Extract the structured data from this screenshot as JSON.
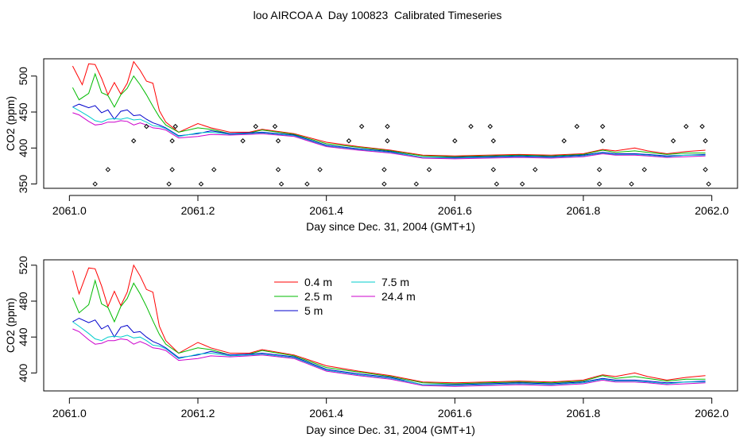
{
  "page": {
    "title": "loo AIRCOA A  Day 100823  Calibrated Timeseries"
  },
  "chart_data": [
    {
      "type": "line",
      "title": "",
      "xlabel": "Day since Dec. 31, 2004 (GMT+1)",
      "ylabel": "CO2 (ppm)",
      "xlim": [
        2060.96,
        2062.04
      ],
      "ylim": [
        344,
        524
      ],
      "xticks": [
        2061.0,
        2061.2,
        2061.4,
        2061.6,
        2061.8,
        2062.0
      ],
      "xtick_labels": [
        "2061.0",
        "2061.2",
        "2061.4",
        "2061.6",
        "2061.8",
        "2062.0"
      ],
      "yticks": [
        350,
        400,
        450,
        500
      ],
      "ytick_labels": [
        "350",
        "400",
        "450",
        "500"
      ],
      "legend": null,
      "grid": false,
      "series": [
        {
          "color": "#ff0000",
          "x": [
            2061.005,
            2061.02,
            2061.03,
            2061.04,
            2061.05,
            2061.06,
            2061.07,
            2061.08,
            2061.09,
            2061.1,
            2061.11,
            2061.12,
            2061.13,
            2061.14,
            2061.15,
            2061.17,
            2061.2,
            2061.22,
            2061.25,
            2061.28,
            2061.3,
            2061.35,
            2061.4,
            2061.45,
            2061.5,
            2061.55,
            2061.6,
            2061.65,
            2061.7,
            2061.75,
            2061.8,
            2061.83,
            2061.85,
            2061.88,
            2061.9,
            2061.93,
            2061.96,
            2061.99
          ],
          "y": [
            514,
            488,
            517,
            516,
            497,
            474,
            491,
            475,
            490,
            520,
            508,
            493,
            490,
            452,
            436,
            422,
            434,
            428,
            422,
            422,
            426,
            420,
            408,
            402,
            397,
            390,
            389,
            390,
            391,
            390,
            392,
            398,
            396,
            400,
            396,
            392,
            395,
            397
          ]
        },
        {
          "color": "#00bb00",
          "x": [
            2061.005,
            2061.015,
            2061.03,
            2061.04,
            2061.05,
            2061.06,
            2061.07,
            2061.08,
            2061.09,
            2061.1,
            2061.11,
            2061.12,
            2061.13,
            2061.14,
            2061.15,
            2061.17,
            2061.2,
            2061.22,
            2061.25,
            2061.28,
            2061.3,
            2061.35,
            2061.4,
            2061.45,
            2061.5,
            2061.55,
            2061.6,
            2061.65,
            2061.7,
            2061.75,
            2061.8,
            2061.83,
            2061.85,
            2061.88,
            2061.9,
            2061.93,
            2061.96,
            2061.99
          ],
          "y": [
            484,
            467,
            476,
            503,
            477,
            473,
            457,
            474,
            483,
            500,
            488,
            474,
            458,
            443,
            432,
            422,
            428,
            426,
            420,
            421,
            425,
            419,
            406,
            401,
            396,
            389,
            388,
            389,
            390,
            389,
            391,
            397,
            394,
            396,
            394,
            391,
            393,
            393
          ]
        },
        {
          "color": "#0000cc",
          "x": [
            2061.005,
            2061.015,
            2061.03,
            2061.04,
            2061.05,
            2061.06,
            2061.07,
            2061.08,
            2061.09,
            2061.1,
            2061.11,
            2061.12,
            2061.13,
            2061.14,
            2061.15,
            2061.17,
            2061.2,
            2061.22,
            2061.25,
            2061.28,
            2061.3,
            2061.35,
            2061.4,
            2061.45,
            2061.5,
            2061.55,
            2061.6,
            2061.65,
            2061.7,
            2061.75,
            2061.8,
            2061.83,
            2061.85,
            2061.88,
            2061.9,
            2061.93,
            2061.96,
            2061.99
          ],
          "y": [
            457,
            461,
            456,
            459,
            449,
            453,
            440,
            451,
            453,
            445,
            446,
            440,
            435,
            432,
            428,
            417,
            420,
            424,
            420,
            421,
            422,
            418,
            404,
            399,
            395,
            387,
            387,
            388,
            389,
            388,
            390,
            394,
            392,
            392,
            391,
            389,
            390,
            391
          ]
        },
        {
          "color": "#00cccc",
          "x": [
            2061.005,
            2061.015,
            2061.03,
            2061.04,
            2061.05,
            2061.06,
            2061.07,
            2061.08,
            2061.09,
            2061.1,
            2061.11,
            2061.12,
            2061.13,
            2061.14,
            2061.15,
            2061.17,
            2061.2,
            2061.22,
            2061.25,
            2061.28,
            2061.3,
            2061.35,
            2061.4,
            2061.45,
            2061.5,
            2061.55,
            2061.6,
            2061.65,
            2061.7,
            2061.75,
            2061.8,
            2061.83,
            2061.85,
            2061.88,
            2061.9,
            2061.93,
            2061.96,
            2061.99
          ],
          "y": [
            457,
            452,
            444,
            438,
            436,
            440,
            441,
            440,
            442,
            439,
            440,
            436,
            431,
            430,
            427,
            416,
            421,
            422,
            419,
            420,
            421,
            417,
            403,
            398,
            394,
            387,
            386,
            387,
            388,
            387,
            389,
            393,
            391,
            391,
            390,
            388,
            390,
            390
          ]
        },
        {
          "color": "#cc00cc",
          "x": [
            2061.005,
            2061.015,
            2061.03,
            2061.04,
            2061.05,
            2061.06,
            2061.07,
            2061.08,
            2061.09,
            2061.1,
            2061.11,
            2061.12,
            2061.13,
            2061.14,
            2061.15,
            2061.17,
            2061.2,
            2061.22,
            2061.25,
            2061.28,
            2061.3,
            2061.35,
            2061.4,
            2061.45,
            2061.5,
            2061.55,
            2061.6,
            2061.65,
            2061.7,
            2061.75,
            2061.8,
            2061.83,
            2061.85,
            2061.88,
            2061.9,
            2061.93,
            2061.96,
            2061.99
          ],
          "y": [
            449,
            446,
            437,
            432,
            433,
            436,
            436,
            438,
            437,
            432,
            435,
            432,
            428,
            427,
            425,
            414,
            416,
            419,
            418,
            419,
            420,
            416,
            402,
            397,
            393,
            386,
            385,
            386,
            387,
            386,
            388,
            392,
            390,
            390,
            389,
            387,
            388,
            389
          ]
        }
      ],
      "scatter": {
        "color": "#000000",
        "x": [
          2061.04,
          2061.06,
          2061.1,
          2061.12,
          2061.155,
          2061.16,
          2061.16,
          2061.165,
          2061.205,
          2061.225,
          2061.27,
          2061.29,
          2061.32,
          2061.325,
          2061.325,
          2061.33,
          2061.37,
          2061.39,
          2061.435,
          2061.455,
          2061.49,
          2061.49,
          2061.495,
          2061.495,
          2061.54,
          2061.56,
          2061.6,
          2061.625,
          2061.655,
          2061.66,
          2061.66,
          2061.665,
          2061.705,
          2061.725,
          2061.77,
          2061.79,
          2061.825,
          2061.825,
          2061.83,
          2061.83,
          2061.875,
          2061.895,
          2061.94,
          2061.96,
          2061.985,
          2061.99,
          2061.99,
          2061.995
        ],
        "y": [
          350,
          370,
          410,
          430,
          350,
          370,
          410,
          430,
          350,
          370,
          410,
          430,
          430,
          370,
          410,
          350,
          350,
          370,
          410,
          430,
          350,
          370,
          410,
          430,
          350,
          370,
          410,
          430,
          430,
          370,
          410,
          350,
          350,
          370,
          410,
          430,
          350,
          370,
          410,
          430,
          350,
          370,
          410,
          430,
          430,
          370,
          410,
          350
        ]
      }
    },
    {
      "type": "line",
      "title": "",
      "xlabel": "Day since Dec. 31, 2004 (GMT+1)",
      "ylabel": "CO2 (ppm)",
      "xlim": [
        2060.96,
        2062.04
      ],
      "ylim": [
        380,
        526
      ],
      "xticks": [
        2061.0,
        2061.2,
        2061.4,
        2061.6,
        2061.8,
        2062.0
      ],
      "xtick_labels": [
        "2061.0",
        "2061.2",
        "2061.4",
        "2061.6",
        "2061.8",
        "2062.0"
      ],
      "yticks": [
        400,
        440,
        480,
        520
      ],
      "ytick_labels": [
        "400",
        "440",
        "480",
        "520"
      ],
      "legend": "top-center",
      "grid": false,
      "series": [
        {
          "name": "0.4 m",
          "color": "#ff0000",
          "x": [
            2061.005,
            2061.015,
            2061.03,
            2061.04,
            2061.05,
            2061.06,
            2061.07,
            2061.08,
            2061.09,
            2061.1,
            2061.11,
            2061.12,
            2061.13,
            2061.14,
            2061.15,
            2061.17,
            2061.2,
            2061.22,
            2061.25,
            2061.28,
            2061.3,
            2061.35,
            2061.4,
            2061.45,
            2061.5,
            2061.55,
            2061.6,
            2061.65,
            2061.7,
            2061.75,
            2061.8,
            2061.83,
            2061.85,
            2061.88,
            2061.9,
            2061.93,
            2061.96,
            2061.99
          ],
          "y": [
            514,
            488,
            517,
            516,
            497,
            474,
            491,
            475,
            490,
            520,
            508,
            493,
            490,
            452,
            436,
            422,
            434,
            428,
            422,
            422,
            426,
            420,
            408,
            402,
            397,
            390,
            389,
            390,
            391,
            390,
            392,
            398,
            396,
            400,
            396,
            392,
            395,
            397
          ]
        },
        {
          "name": "2.5 m",
          "color": "#00bb00",
          "x": [
            2061.005,
            2061.015,
            2061.03,
            2061.04,
            2061.05,
            2061.06,
            2061.07,
            2061.08,
            2061.09,
            2061.1,
            2061.11,
            2061.12,
            2061.13,
            2061.14,
            2061.15,
            2061.17,
            2061.2,
            2061.22,
            2061.25,
            2061.28,
            2061.3,
            2061.35,
            2061.4,
            2061.45,
            2061.5,
            2061.55,
            2061.6,
            2061.65,
            2061.7,
            2061.75,
            2061.8,
            2061.83,
            2061.85,
            2061.88,
            2061.9,
            2061.93,
            2061.96,
            2061.99
          ],
          "y": [
            484,
            467,
            476,
            503,
            477,
            473,
            457,
            474,
            483,
            500,
            488,
            474,
            458,
            443,
            432,
            422,
            428,
            426,
            420,
            421,
            425,
            419,
            406,
            401,
            396,
            389,
            388,
            389,
            390,
            389,
            391,
            397,
            394,
            396,
            394,
            391,
            393,
            393
          ]
        },
        {
          "name": "5 m",
          "color": "#0000cc",
          "x": [
            2061.005,
            2061.015,
            2061.03,
            2061.04,
            2061.05,
            2061.06,
            2061.07,
            2061.08,
            2061.09,
            2061.1,
            2061.11,
            2061.12,
            2061.13,
            2061.14,
            2061.15,
            2061.17,
            2061.2,
            2061.22,
            2061.25,
            2061.28,
            2061.3,
            2061.35,
            2061.4,
            2061.45,
            2061.5,
            2061.55,
            2061.6,
            2061.65,
            2061.7,
            2061.75,
            2061.8,
            2061.83,
            2061.85,
            2061.88,
            2061.9,
            2061.93,
            2061.96,
            2061.99
          ],
          "y": [
            457,
            461,
            456,
            459,
            449,
            453,
            440,
            451,
            453,
            445,
            446,
            440,
            435,
            432,
            428,
            417,
            420,
            424,
            420,
            421,
            422,
            418,
            404,
            399,
            395,
            387,
            387,
            388,
            389,
            388,
            390,
            394,
            392,
            392,
            391,
            389,
            390,
            391
          ]
        },
        {
          "name": "7.5 m",
          "color": "#00cccc",
          "x": [
            2061.005,
            2061.015,
            2061.03,
            2061.04,
            2061.05,
            2061.06,
            2061.07,
            2061.08,
            2061.09,
            2061.1,
            2061.11,
            2061.12,
            2061.13,
            2061.14,
            2061.15,
            2061.17,
            2061.2,
            2061.22,
            2061.25,
            2061.28,
            2061.3,
            2061.35,
            2061.4,
            2061.45,
            2061.5,
            2061.55,
            2061.6,
            2061.65,
            2061.7,
            2061.75,
            2061.8,
            2061.83,
            2061.85,
            2061.88,
            2061.9,
            2061.93,
            2061.96,
            2061.99
          ],
          "y": [
            457,
            452,
            444,
            438,
            436,
            440,
            441,
            440,
            442,
            439,
            440,
            436,
            431,
            430,
            427,
            416,
            421,
            422,
            419,
            420,
            421,
            417,
            403,
            398,
            394,
            387,
            386,
            387,
            388,
            387,
            389,
            393,
            391,
            391,
            390,
            388,
            390,
            390
          ]
        },
        {
          "name": "24.4 m",
          "color": "#cc00cc",
          "x": [
            2061.005,
            2061.015,
            2061.03,
            2061.04,
            2061.05,
            2061.06,
            2061.07,
            2061.08,
            2061.09,
            2061.1,
            2061.11,
            2061.12,
            2061.13,
            2061.14,
            2061.15,
            2061.17,
            2061.2,
            2061.22,
            2061.25,
            2061.28,
            2061.3,
            2061.35,
            2061.4,
            2061.45,
            2061.5,
            2061.55,
            2061.6,
            2061.65,
            2061.7,
            2061.75,
            2061.8,
            2061.83,
            2061.85,
            2061.88,
            2061.9,
            2061.93,
            2061.96,
            2061.99
          ],
          "y": [
            449,
            446,
            437,
            432,
            433,
            436,
            436,
            438,
            437,
            432,
            435,
            432,
            428,
            427,
            425,
            414,
            416,
            419,
            418,
            419,
            420,
            416,
            402,
            397,
            393,
            386,
            385,
            386,
            387,
            386,
            388,
            392,
            390,
            390,
            389,
            387,
            388,
            389
          ]
        }
      ]
    }
  ]
}
